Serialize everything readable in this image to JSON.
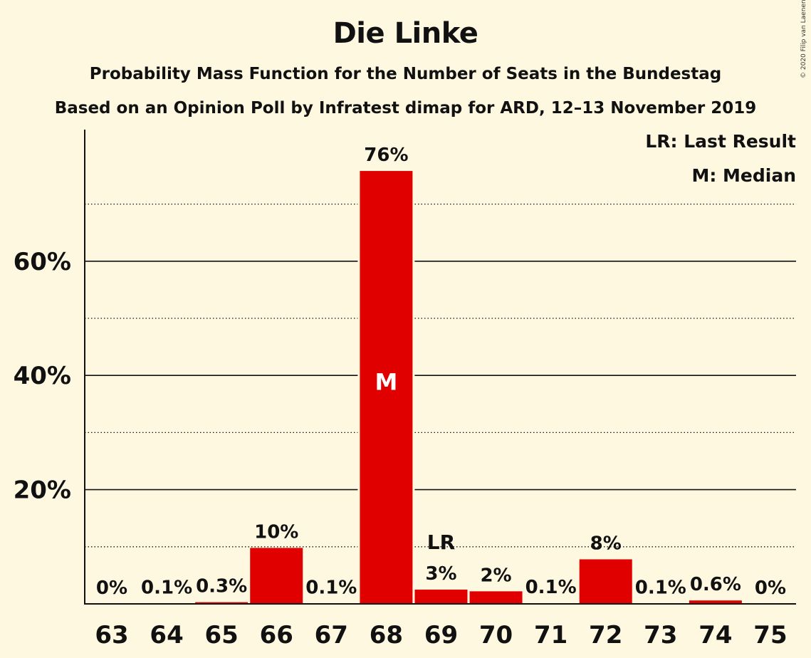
{
  "copyright": "© 2020 Filip van Laenen",
  "legend": {
    "last_result": "LR: Last Result",
    "median": "M: Median"
  },
  "colors": {
    "background": "#FFF8E1",
    "bar": "#E00000",
    "text": "#111111"
  },
  "chart_data": {
    "type": "bar",
    "title": "Die Linke",
    "subtitle": "Probability Mass Function for the Number of Seats in the Bundestag",
    "subtitle2": "Based on an Opinion Poll by Infratest dimap for ARD, 12–13 November 2019",
    "xlabel": "",
    "ylabel": "",
    "categories": [
      "63",
      "64",
      "65",
      "66",
      "67",
      "68",
      "69",
      "70",
      "71",
      "72",
      "73",
      "74",
      "75"
    ],
    "values": [
      0,
      0.1,
      0.3,
      10,
      0.1,
      76,
      3,
      2,
      0.1,
      8,
      0.1,
      0.6,
      0
    ],
    "bar_values_exact": [
      0,
      0.05,
      0.3,
      9.8,
      0.05,
      75.8,
      2.5,
      2.2,
      0.1,
      7.8,
      0.05,
      0.6,
      0
    ],
    "labels": [
      "0%",
      "0.1%",
      "0.3%",
      "10%",
      "0.1%",
      "76%",
      "3%",
      "2%",
      "0.1%",
      "8%",
      "0.1%",
      "0.6%",
      "0%"
    ],
    "ylim": [
      0,
      80
    ],
    "yticks": [
      20,
      40,
      60
    ],
    "ytick_labels": [
      "20%",
      "40%",
      "60%"
    ],
    "minor_gridlines": [
      10,
      30,
      50,
      70
    ],
    "median_seat": "68",
    "median_marker": "M",
    "last_result_seat": "69",
    "last_result_marker": "LR",
    "legend_position": "top-right"
  }
}
